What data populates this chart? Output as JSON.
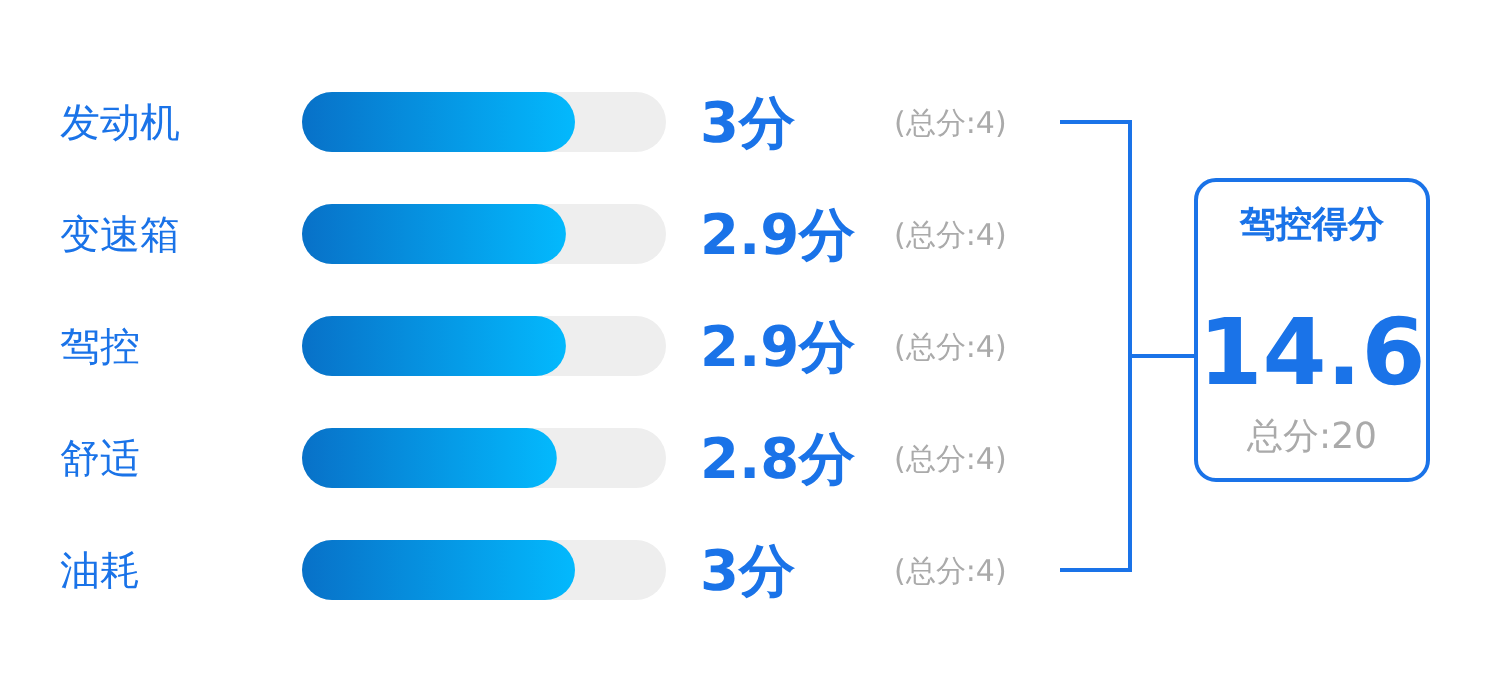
{
  "chart_data": {
    "type": "bar",
    "orientation": "horizontal",
    "categories": [
      "发动机",
      "变速箱",
      "驾控",
      "舒适",
      "油耗"
    ],
    "values": [
      3,
      2.9,
      2.9,
      2.8,
      3
    ],
    "value_labels": [
      "3分",
      "2.9分",
      "2.9分",
      "2.8分",
      "3分"
    ],
    "color": "#0a8cf8",
    "xlim": [
      0,
      4
    ],
    "tick_labels": "y",
    "annotations": [
      "(总分:4)",
      "(总分:4)",
      "(总分:4)",
      "(总分:4)",
      "(总分:4)",
      "驾控得分",
      "14.6",
      "总分:20"
    ]
  }
}
